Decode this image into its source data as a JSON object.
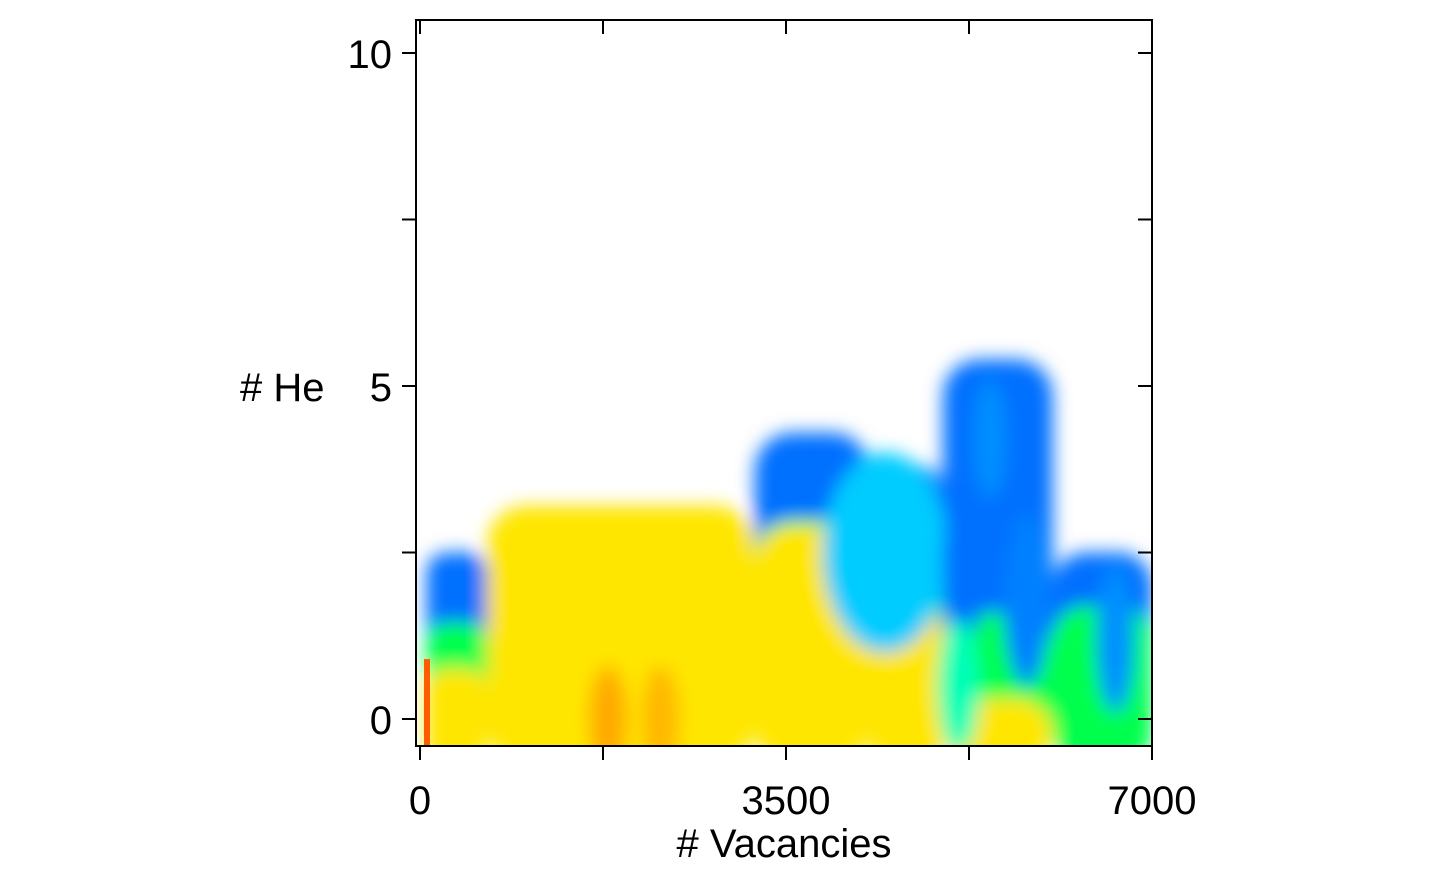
{
  "chart_data": {
    "type": "heatmap",
    "title": "",
    "xlabel": "# Vacancies",
    "ylabel": "# He",
    "xlim": [
      0,
      7000
    ],
    "ylim": [
      -0.5,
      10.5
    ],
    "x_ticks": [
      0,
      3500,
      7000
    ],
    "x_tick_labels": [
      "0",
      "3500",
      "7000"
    ],
    "x_minor_ticks": [
      1750,
      5250
    ],
    "y_ticks": [
      0,
      5,
      10
    ],
    "y_tick_labels": [
      "0",
      "5",
      "10"
    ],
    "y_minor_ticks": [
      2.5,
      7.5
    ],
    "colormap": [
      "#ff0000",
      "#ff8000",
      "#ffff00",
      "#00ff00",
      "#00ffff",
      "#0000ff",
      "#ffffff"
    ],
    "grid": false,
    "legend": "none",
    "columns": [
      {
        "x0": 60,
        "x1": 640,
        "heights": [
          0.75,
          1.45,
          2.5
        ]
      },
      {
        "x0": 640,
        "x1": 3200,
        "heights": [
          3.2,
          3.2,
          3.2
        ]
      },
      {
        "x0": 3200,
        "x1": 4300,
        "heights": [
          2.9,
          3.0,
          4.3
        ]
      },
      {
        "x0": 4300,
        "x1": 5000,
        "heights": [
          1.7,
          3.0,
          3.8
        ]
      },
      {
        "x0": 5000,
        "x1": 6050,
        "heights": [
          0.3,
          1.6,
          5.4
        ]
      },
      {
        "x0": 6050,
        "x1": 7000,
        "heights": [
          0.0,
          1.7,
          2.5
        ]
      }
    ],
    "hotspots": [
      {
        "x": 1800,
        "y": 0,
        "level": 0.22,
        "rx": 180,
        "ry": 0.8
      },
      {
        "x": 2300,
        "y": 0,
        "level": 0.24,
        "rx": 180,
        "ry": 0.8
      },
      {
        "x": 4450,
        "y": 2.5,
        "level": 0.7,
        "rx": 600,
        "ry": 1.5
      },
      {
        "x": 5450,
        "y": 4.2,
        "level": 0.74,
        "rx": 160,
        "ry": 0.9
      },
      {
        "x": 5200,
        "y": 2.3,
        "level": 0.76,
        "rx": 200,
        "ry": 1.2
      },
      {
        "x": 5150,
        "y": 0.5,
        "level": 0.62,
        "rx": 200,
        "ry": 1.0
      },
      {
        "x": 5800,
        "y": 1.8,
        "level": 0.75,
        "rx": 220,
        "ry": 1.3
      },
      {
        "x": 6650,
        "y": 1.2,
        "level": 0.74,
        "rx": 180,
        "ry": 1.1
      }
    ]
  }
}
